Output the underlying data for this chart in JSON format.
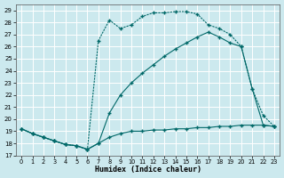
{
  "xlabel": "Humidex (Indice chaleur)",
  "bg_color": "#cce9ee",
  "grid_color": "#b8d8de",
  "line_color": "#006868",
  "xlim": [
    -0.5,
    23.5
  ],
  "ylim": [
    17.0,
    29.5
  ],
  "yticks": [
    17,
    18,
    19,
    20,
    21,
    22,
    23,
    24,
    25,
    26,
    27,
    28,
    29
  ],
  "xticks": [
    0,
    1,
    2,
    3,
    4,
    5,
    6,
    7,
    8,
    9,
    10,
    11,
    12,
    13,
    14,
    15,
    16,
    17,
    18,
    19,
    20,
    21,
    22,
    23
  ],
  "line1_x": [
    0,
    1,
    2,
    3,
    4,
    5,
    6,
    7,
    8,
    9,
    10,
    11,
    12,
    13,
    14,
    15,
    16,
    17,
    18,
    19,
    20,
    21,
    22,
    23
  ],
  "line1_y": [
    19.2,
    18.8,
    18.5,
    18.2,
    17.9,
    17.8,
    17.5,
    18.0,
    18.5,
    18.8,
    19.0,
    19.0,
    19.1,
    19.1,
    19.2,
    19.2,
    19.3,
    19.3,
    19.4,
    19.4,
    19.5,
    19.5,
    19.5,
    19.4
  ],
  "line2_x": [
    0,
    1,
    2,
    3,
    4,
    5,
    6,
    7,
    8,
    9,
    10,
    11,
    12,
    13,
    14,
    15,
    16,
    17,
    18,
    19,
    20,
    21,
    22,
    23
  ],
  "line2_y": [
    19.2,
    18.8,
    18.5,
    18.2,
    17.9,
    17.8,
    17.5,
    26.5,
    28.2,
    27.5,
    27.8,
    28.5,
    28.8,
    28.8,
    28.9,
    28.9,
    28.7,
    27.8,
    27.5,
    27.0,
    26.0,
    22.5,
    20.3,
    19.4
  ],
  "line3_x": [
    0,
    1,
    2,
    3,
    4,
    5,
    6,
    7,
    8,
    9,
    10,
    11,
    12,
    13,
    14,
    15,
    16,
    17,
    18,
    19,
    20,
    21,
    22,
    23
  ],
  "line3_y": [
    19.2,
    18.8,
    18.5,
    18.2,
    17.9,
    17.8,
    17.5,
    18.0,
    20.5,
    22.0,
    23.0,
    23.8,
    24.5,
    25.2,
    25.8,
    26.3,
    26.8,
    27.2,
    26.8,
    26.3,
    26.0,
    22.5,
    19.5,
    19.4
  ]
}
